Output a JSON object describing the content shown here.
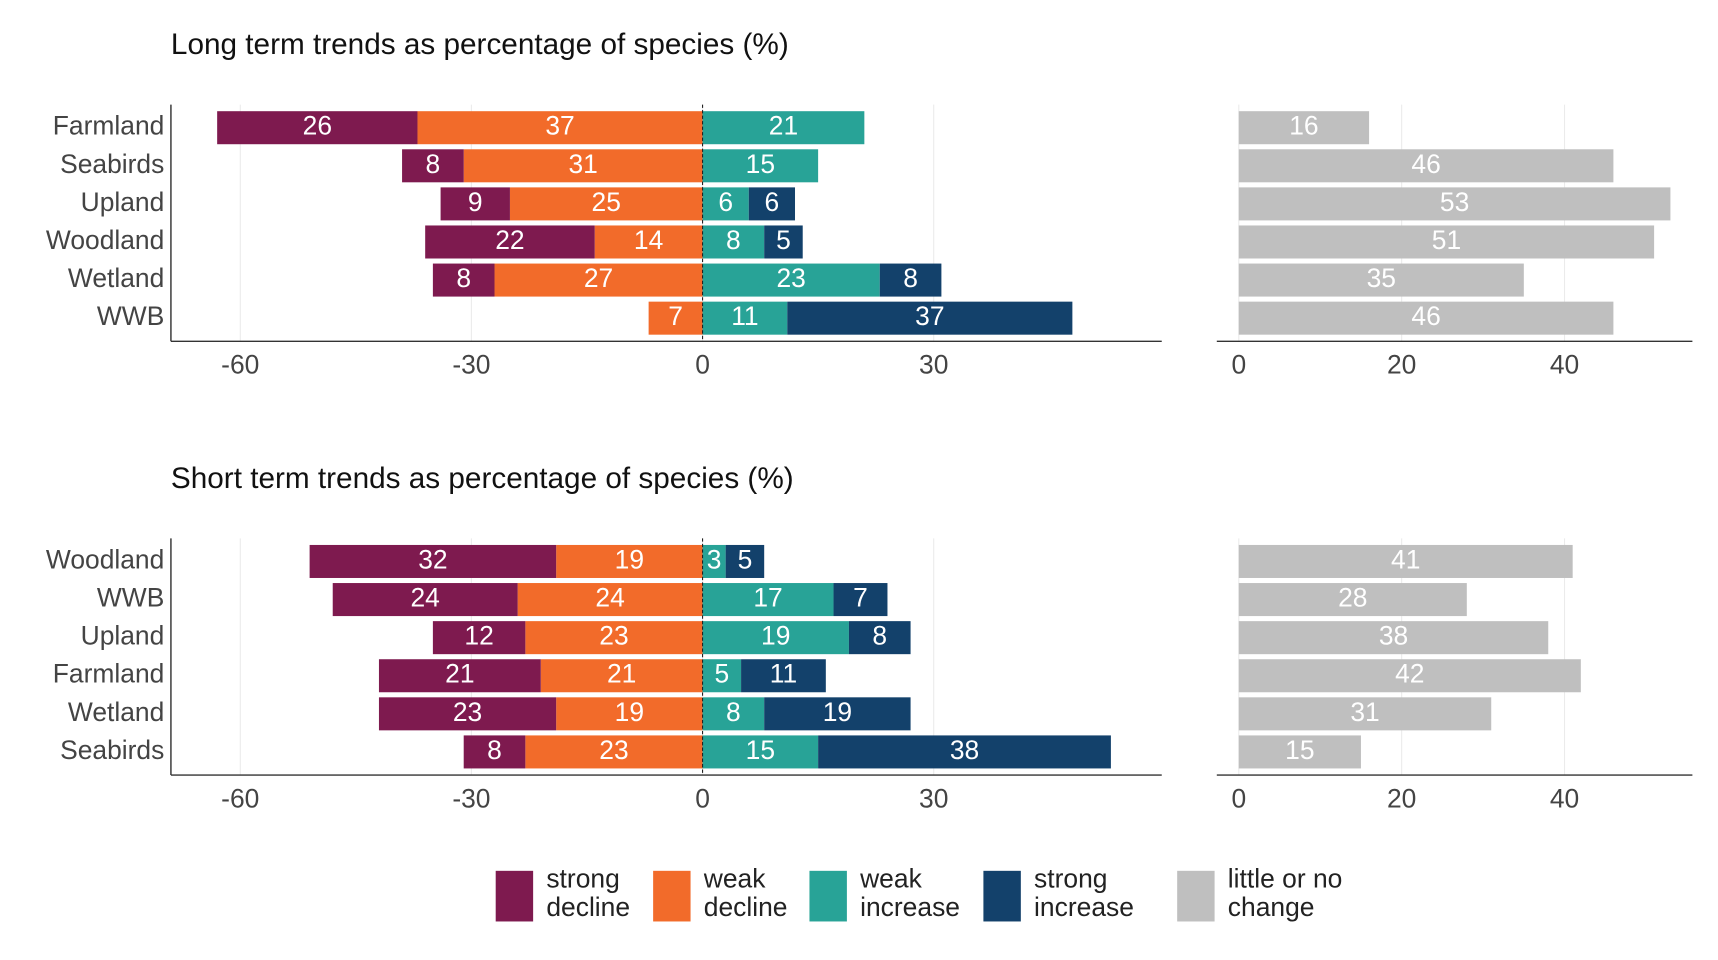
{
  "chart_data": [
    {
      "type": "diverging_bar",
      "title": "Long term trends as percentage of species (%)",
      "categories": [
        "Farmland",
        "Seabirds",
        "Upland",
        "Woodland",
        "Wetland",
        "WWB"
      ],
      "series": [
        {
          "name": "strong decline",
          "color": "#7e1a4f",
          "direction": "left",
          "values": [
            26,
            8,
            9,
            22,
            8,
            null
          ]
        },
        {
          "name": "weak decline",
          "color": "#f26b2a",
          "direction": "left",
          "values": [
            37,
            31,
            25,
            14,
            27,
            7
          ]
        },
        {
          "name": "weak increase",
          "color": "#28a397",
          "direction": "right",
          "values": [
            21,
            15,
            6,
            8,
            23,
            11
          ]
        },
        {
          "name": "strong increase",
          "color": "#13416b",
          "direction": "right",
          "values": [
            null,
            null,
            6,
            5,
            8,
            37
          ]
        },
        {
          "name": "little or no change",
          "color": "#bfbfbf",
          "axis": "x2",
          "values": [
            16,
            46,
            53,
            51,
            35,
            46
          ]
        }
      ],
      "xlim": [
        -69,
        59.6
      ],
      "xticks": [
        -60,
        -30,
        0,
        30
      ],
      "x2lim": [
        -2.7,
        55.7
      ],
      "x2ticks": [
        0,
        20,
        40
      ],
      "grid": true
    },
    {
      "type": "diverging_bar",
      "title": "Short term trends as percentage of species (%)",
      "categories": [
        "Woodland",
        "WWB",
        "Upland",
        "Farmland",
        "Wetland",
        "Seabirds"
      ],
      "series": [
        {
          "name": "strong decline",
          "color": "#7e1a4f",
          "direction": "left",
          "values": [
            32,
            24,
            12,
            21,
            23,
            8
          ]
        },
        {
          "name": "weak decline",
          "color": "#f26b2a",
          "direction": "left",
          "values": [
            19,
            24,
            23,
            21,
            19,
            23
          ]
        },
        {
          "name": "weak increase",
          "color": "#28a397",
          "direction": "right",
          "values": [
            3,
            17,
            19,
            5,
            8,
            15
          ]
        },
        {
          "name": "strong increase",
          "color": "#13416b",
          "direction": "right",
          "values": [
            5,
            7,
            8,
            11,
            19,
            38
          ]
        },
        {
          "name": "little or no change",
          "color": "#bfbfbf",
          "axis": "x2",
          "values": [
            41,
            28,
            38,
            42,
            31,
            15
          ]
        }
      ],
      "xlim": [
        -69,
        59.6
      ],
      "xticks": [
        -60,
        -30,
        0,
        30
      ],
      "x2lim": [
        -2.7,
        55.7
      ],
      "x2ticks": [
        0,
        20,
        40
      ],
      "grid": true
    }
  ]
}
